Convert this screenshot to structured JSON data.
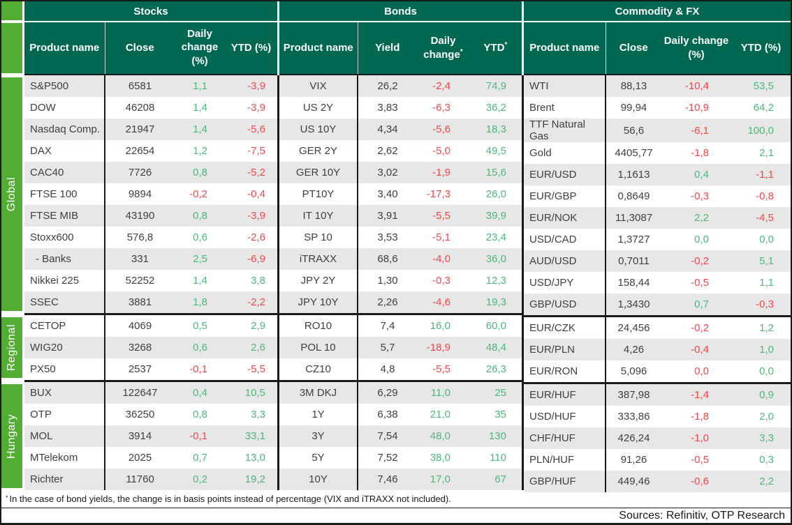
{
  "colors": {
    "header_green": "#006851",
    "sidebar_green": "#52ae32",
    "positive": "#4cb87a",
    "negative": "#f5474a",
    "row_stripe": "#e7e7e7",
    "border": "#1a1a1a"
  },
  "groups": [
    "Global",
    "Regional",
    "Hungary"
  ],
  "sections": [
    {
      "key": "stocks",
      "title": "Stocks",
      "headers": [
        "Product name",
        "Close",
        "Daily change (%)",
        "YTD (%)"
      ],
      "header_sups": [
        "",
        "",
        "",
        ""
      ]
    },
    {
      "key": "bonds",
      "title": "Bonds",
      "headers": [
        "Product name",
        "Yield",
        "Daily change",
        "YTD"
      ],
      "header_sups": [
        "",
        "",
        "*",
        "*"
      ]
    },
    {
      "key": "cfx",
      "title": "Commodity & FX",
      "headers": [
        "Product name",
        "Close",
        "Daily change (%)",
        "YTD (%)"
      ],
      "header_sups": [
        "",
        "",
        "",
        ""
      ]
    }
  ],
  "rows": {
    "global": [
      {
        "stocks": {
          "name": "S&P500",
          "val": "6581",
          "chg": {
            "v": "1,1",
            "c": "pos"
          },
          "ytd": {
            "v": "-3,9",
            "c": "neg"
          }
        },
        "bonds": {
          "name": "VIX",
          "val": "26,2",
          "chg": {
            "v": "-2,4",
            "c": "neg"
          },
          "ytd": {
            "v": "74,9",
            "c": "pos"
          }
        },
        "cfx": {
          "name": "WTI",
          "val": "88,13",
          "chg": {
            "v": "-10,4",
            "c": "neg"
          },
          "ytd": {
            "v": "53,5",
            "c": "pos"
          }
        }
      },
      {
        "stocks": {
          "name": "DOW",
          "val": "46208",
          "chg": {
            "v": "1,4",
            "c": "pos"
          },
          "ytd": {
            "v": "-3,9",
            "c": "neg"
          }
        },
        "bonds": {
          "name": "US 2Y",
          "val": "3,83",
          "chg": {
            "v": "-6,3",
            "c": "neg"
          },
          "ytd": {
            "v": "36,2",
            "c": "pos"
          }
        },
        "cfx": {
          "name": "Brent",
          "val": "99,94",
          "chg": {
            "v": "-10,9",
            "c": "neg"
          },
          "ytd": {
            "v": "64,2",
            "c": "pos"
          }
        }
      },
      {
        "stocks": {
          "name": "Nasdaq Comp.",
          "val": "21947",
          "chg": {
            "v": "1,4",
            "c": "pos"
          },
          "ytd": {
            "v": "-5,6",
            "c": "neg"
          }
        },
        "bonds": {
          "name": "US 10Y",
          "val": "4,34",
          "chg": {
            "v": "-5,6",
            "c": "neg"
          },
          "ytd": {
            "v": "18,3",
            "c": "pos"
          }
        },
        "cfx": {
          "name": "TTF Natural Gas",
          "val": "56,6",
          "chg": {
            "v": "-6,1",
            "c": "neg"
          },
          "ytd": {
            "v": "100,0",
            "c": "pos"
          }
        }
      },
      {
        "stocks": {
          "name": "DAX",
          "val": "22654",
          "chg": {
            "v": "1,2",
            "c": "pos"
          },
          "ytd": {
            "v": "-7,5",
            "c": "neg"
          }
        },
        "bonds": {
          "name": "GER 2Y",
          "val": "2,62",
          "chg": {
            "v": "-5,0",
            "c": "neg"
          },
          "ytd": {
            "v": "49,5",
            "c": "pos"
          }
        },
        "cfx": {
          "name": "Gold",
          "val": "4405,77",
          "chg": {
            "v": "-1,8",
            "c": "neg"
          },
          "ytd": {
            "v": "2,1",
            "c": "pos"
          }
        }
      },
      {
        "stocks": {
          "name": "CAC40",
          "val": "7726",
          "chg": {
            "v": "0,8",
            "c": "pos"
          },
          "ytd": {
            "v": "-5,2",
            "c": "neg"
          }
        },
        "bonds": {
          "name": "GER 10Y",
          "val": "3,02",
          "chg": {
            "v": "-1,9",
            "c": "neg"
          },
          "ytd": {
            "v": "15,6",
            "c": "pos"
          }
        },
        "cfx": {
          "name": "EUR/USD",
          "val": "1,1613",
          "chg": {
            "v": "0,4",
            "c": "pos"
          },
          "ytd": {
            "v": "-1,1",
            "c": "neg"
          }
        }
      },
      {
        "stocks": {
          "name": "FTSE 100",
          "val": "9894",
          "chg": {
            "v": "-0,2",
            "c": "neg"
          },
          "ytd": {
            "v": "-0,4",
            "c": "neg"
          }
        },
        "bonds": {
          "name": "PT10Y",
          "val": "3,40",
          "chg": {
            "v": "-17,3",
            "c": "neg"
          },
          "ytd": {
            "v": "26,0",
            "c": "pos"
          }
        },
        "cfx": {
          "name": "EUR/GBP",
          "val": "0,8649",
          "chg": {
            "v": "-0,3",
            "c": "neg"
          },
          "ytd": {
            "v": "-0,8",
            "c": "neg"
          }
        }
      },
      {
        "stocks": {
          "name": "FTSE MIB",
          "val": "43190",
          "chg": {
            "v": "0,8",
            "c": "pos"
          },
          "ytd": {
            "v": "-3,9",
            "c": "neg"
          }
        },
        "bonds": {
          "name": "IT 10Y",
          "val": "3,91",
          "chg": {
            "v": "-5,5",
            "c": "neg"
          },
          "ytd": {
            "v": "39,9",
            "c": "pos"
          }
        },
        "cfx": {
          "name": "EUR/NOK",
          "val": "11,3087",
          "chg": {
            "v": "2,2",
            "c": "pos"
          },
          "ytd": {
            "v": "-4,5",
            "c": "neg"
          }
        }
      },
      {
        "stocks": {
          "name": "Stoxx600",
          "val": "576,8",
          "chg": {
            "v": "0,6",
            "c": "pos"
          },
          "ytd": {
            "v": "-2,6",
            "c": "neg"
          }
        },
        "bonds": {
          "name": "SP 10",
          "val": "3,53",
          "chg": {
            "v": "-5,1",
            "c": "neg"
          },
          "ytd": {
            "v": "23,4",
            "c": "pos"
          }
        },
        "cfx": {
          "name": "USD/CAD",
          "val": "1,3727",
          "chg": {
            "v": "0,0",
            "c": "pos"
          },
          "ytd": {
            "v": "0,0",
            "c": "pos"
          }
        }
      },
      {
        "stocks": {
          "name": "- Banks",
          "indent": true,
          "val": "331",
          "chg": {
            "v": "2,5",
            "c": "pos"
          },
          "ytd": {
            "v": "-6,9",
            "c": "neg"
          }
        },
        "bonds": {
          "name": "iTRAXX",
          "val": "68,6",
          "chg": {
            "v": "-4,0",
            "c": "neg"
          },
          "ytd": {
            "v": "36,0",
            "c": "pos"
          }
        },
        "cfx": {
          "name": "AUD/USD",
          "val": "0,7011",
          "chg": {
            "v": "-0,2",
            "c": "neg"
          },
          "ytd": {
            "v": "5,1",
            "c": "pos"
          }
        }
      },
      {
        "stocks": {
          "name": "Nikkei 225",
          "val": "52252",
          "chg": {
            "v": "1,4",
            "c": "pos"
          },
          "ytd": {
            "v": "3,8",
            "c": "pos"
          }
        },
        "bonds": {
          "name": "JPY 2Y",
          "val": "1,30",
          "chg": {
            "v": "-0,3",
            "c": "neg"
          },
          "ytd": {
            "v": "12,3",
            "c": "pos"
          }
        },
        "cfx": {
          "name": "USD/JPY",
          "val": "158,44",
          "chg": {
            "v": "-0,5",
            "c": "neg"
          },
          "ytd": {
            "v": "1,1",
            "c": "pos"
          }
        }
      },
      {
        "stocks": {
          "name": "SSEC",
          "val": "3881",
          "chg": {
            "v": "1,8",
            "c": "pos"
          },
          "ytd": {
            "v": "-2,2",
            "c": "neg"
          }
        },
        "bonds": {
          "name": "JPY 10Y",
          "val": "2,26",
          "chg": {
            "v": "-4,6",
            "c": "neg"
          },
          "ytd": {
            "v": "19,3",
            "c": "pos"
          }
        },
        "cfx": {
          "name": "GBP/USD",
          "val": "1,3430",
          "chg": {
            "v": "0,7",
            "c": "pos"
          },
          "ytd": {
            "v": "-0,3",
            "c": "neg"
          }
        }
      }
    ],
    "regional": [
      {
        "stocks": {
          "name": "CETOP",
          "val": "4069",
          "chg": {
            "v": "0,5",
            "c": "pos"
          },
          "ytd": {
            "v": "2,9",
            "c": "pos"
          }
        },
        "bonds": {
          "name": "RO10",
          "val": "7,4",
          "chg": {
            "v": "16,0",
            "c": "pos"
          },
          "ytd": {
            "v": "60,0",
            "c": "pos"
          }
        },
        "cfx": {
          "name": "EUR/CZK",
          "val": "24,456",
          "chg": {
            "v": "-0,2",
            "c": "neg"
          },
          "ytd": {
            "v": "1,2",
            "c": "pos"
          }
        }
      },
      {
        "stocks": {
          "name": "WIG20",
          "val": "3268",
          "chg": {
            "v": "0,6",
            "c": "pos"
          },
          "ytd": {
            "v": "2,6",
            "c": "pos"
          }
        },
        "bonds": {
          "name": "POL 10",
          "val": "5,7",
          "chg": {
            "v": "-18,9",
            "c": "neg"
          },
          "ytd": {
            "v": "48,4",
            "c": "pos"
          }
        },
        "cfx": {
          "name": "EUR/PLN",
          "val": "4,26",
          "chg": {
            "v": "-0,4",
            "c": "neg"
          },
          "ytd": {
            "v": "1,0",
            "c": "pos"
          }
        }
      },
      {
        "stocks": {
          "name": "PX50",
          "val": "2537",
          "chg": {
            "v": "-0,1",
            "c": "neg"
          },
          "ytd": {
            "v": "-5,5",
            "c": "neg"
          }
        },
        "bonds": {
          "name": "CZ10",
          "val": "4,8",
          "chg": {
            "v": "-5,5",
            "c": "neg"
          },
          "ytd": {
            "v": "26,3",
            "c": "pos"
          }
        },
        "cfx": {
          "name": "EUR/RON",
          "val": "5,096",
          "chg": {
            "v": "0,0",
            "c": "neg"
          },
          "ytd": {
            "v": "0,0",
            "c": "pos"
          }
        }
      }
    ],
    "hungary": [
      {
        "stocks": {
          "name": "BUX",
          "val": "122647",
          "chg": {
            "v": "0,4",
            "c": "pos"
          },
          "ytd": {
            "v": "10,5",
            "c": "pos"
          }
        },
        "bonds": {
          "name": "3M DKJ",
          "val": "6,29",
          "chg": {
            "v": "11,0",
            "c": "pos"
          },
          "ytd": {
            "v": "25",
            "c": "pos"
          }
        },
        "cfx": {
          "name": "EUR/HUF",
          "val": "387,98",
          "chg": {
            "v": "-1,4",
            "c": "neg"
          },
          "ytd": {
            "v": "0,9",
            "c": "pos"
          }
        }
      },
      {
        "stocks": {
          "name": "OTP",
          "val": "36250",
          "chg": {
            "v": "0,8",
            "c": "pos"
          },
          "ytd": {
            "v": "3,3",
            "c": "pos"
          }
        },
        "bonds": {
          "name": "1Y",
          "val": "6,38",
          "chg": {
            "v": "21,0",
            "c": "pos"
          },
          "ytd": {
            "v": "35",
            "c": "pos"
          }
        },
        "cfx": {
          "name": "USD/HUF",
          "val": "333,86",
          "chg": {
            "v": "-1,8",
            "c": "neg"
          },
          "ytd": {
            "v": "2,0",
            "c": "pos"
          }
        }
      },
      {
        "stocks": {
          "name": "MOL",
          "val": "3914",
          "chg": {
            "v": "-0,1",
            "c": "neg"
          },
          "ytd": {
            "v": "33,1",
            "c": "pos"
          }
        },
        "bonds": {
          "name": "3Y",
          "val": "7,54",
          "chg": {
            "v": "48,0",
            "c": "pos"
          },
          "ytd": {
            "v": "130",
            "c": "pos"
          }
        },
        "cfx": {
          "name": "CHF/HUF",
          "val": "426,24",
          "chg": {
            "v": "-1,0",
            "c": "neg"
          },
          "ytd": {
            "v": "3,3",
            "c": "pos"
          }
        }
      },
      {
        "stocks": {
          "name": "MTelekom",
          "val": "2025",
          "chg": {
            "v": "0,7",
            "c": "pos"
          },
          "ytd": {
            "v": "13,0",
            "c": "pos"
          }
        },
        "bonds": {
          "name": "5Y",
          "val": "7,52",
          "chg": {
            "v": "38,0",
            "c": "pos"
          },
          "ytd": {
            "v": "110",
            "c": "pos"
          }
        },
        "cfx": {
          "name": "PLN/HUF",
          "val": "91,26",
          "chg": {
            "v": "-0,5",
            "c": "neg"
          },
          "ytd": {
            "v": "0,3",
            "c": "pos"
          }
        }
      },
      {
        "stocks": {
          "name": "Richter",
          "val": "11760",
          "chg": {
            "v": "0,2",
            "c": "pos"
          },
          "ytd": {
            "v": "19,2",
            "c": "pos"
          }
        },
        "bonds": {
          "name": "10Y",
          "val": "7,46",
          "chg": {
            "v": "17,0",
            "c": "pos"
          },
          "ytd": {
            "v": "67",
            "c": "pos"
          }
        },
        "cfx": {
          "name": "GBP/HUF",
          "val": "449,46",
          "chg": {
            "v": "-0,6",
            "c": "neg"
          },
          "ytd": {
            "v": "2,2",
            "c": "pos"
          }
        }
      }
    ]
  },
  "footer": {
    "star": "*",
    "note": "In the case of bond yields, the change is in basis points instead of percentage (VIX and iTRAXX not included).",
    "sources": "Sources: Refinitiv, OTP Research"
  }
}
